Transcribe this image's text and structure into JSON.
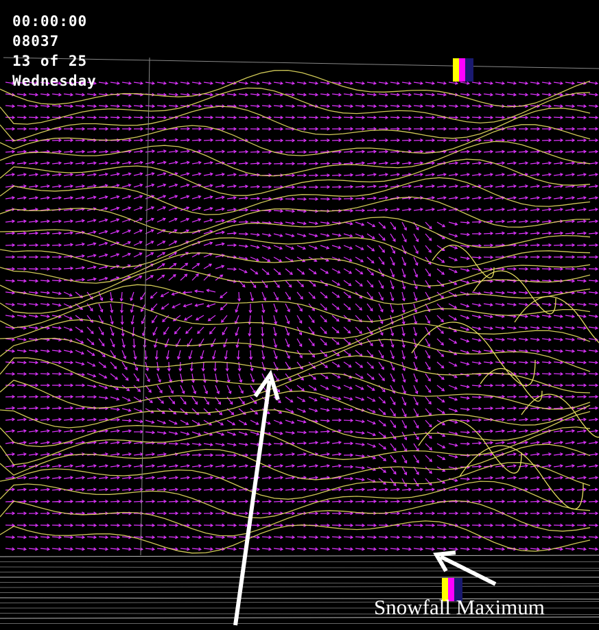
{
  "header": {
    "lines": [
      "00:00:00",
      "08037",
      "13 of 25",
      "Wednesday"
    ]
  },
  "annotation": {
    "label": "Snowfall Maximum"
  }
}
